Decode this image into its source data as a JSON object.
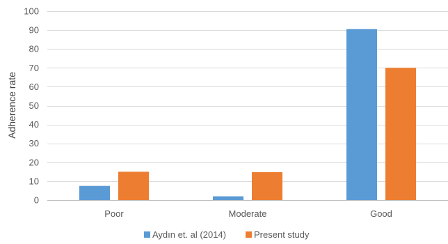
{
  "chart_data": {
    "type": "bar",
    "title": "",
    "xlabel": "",
    "ylabel": "Adherence rate",
    "categories": [
      "Poor",
      "Moderate",
      "Good"
    ],
    "series": [
      {
        "name": "Aydın et. al (2014)",
        "values": [
          7.5,
          2,
          90.5
        ],
        "color": "#5B9BD5"
      },
      {
        "name": "Present study",
        "values": [
          15,
          14.8,
          70
        ],
        "color": "#ED7D31"
      }
    ],
    "ylim": [
      0,
      100
    ],
    "yticks": [
      0,
      10,
      20,
      30,
      40,
      50,
      60,
      70,
      80,
      90,
      100
    ],
    "grid": true,
    "legend_position": "bottom"
  }
}
